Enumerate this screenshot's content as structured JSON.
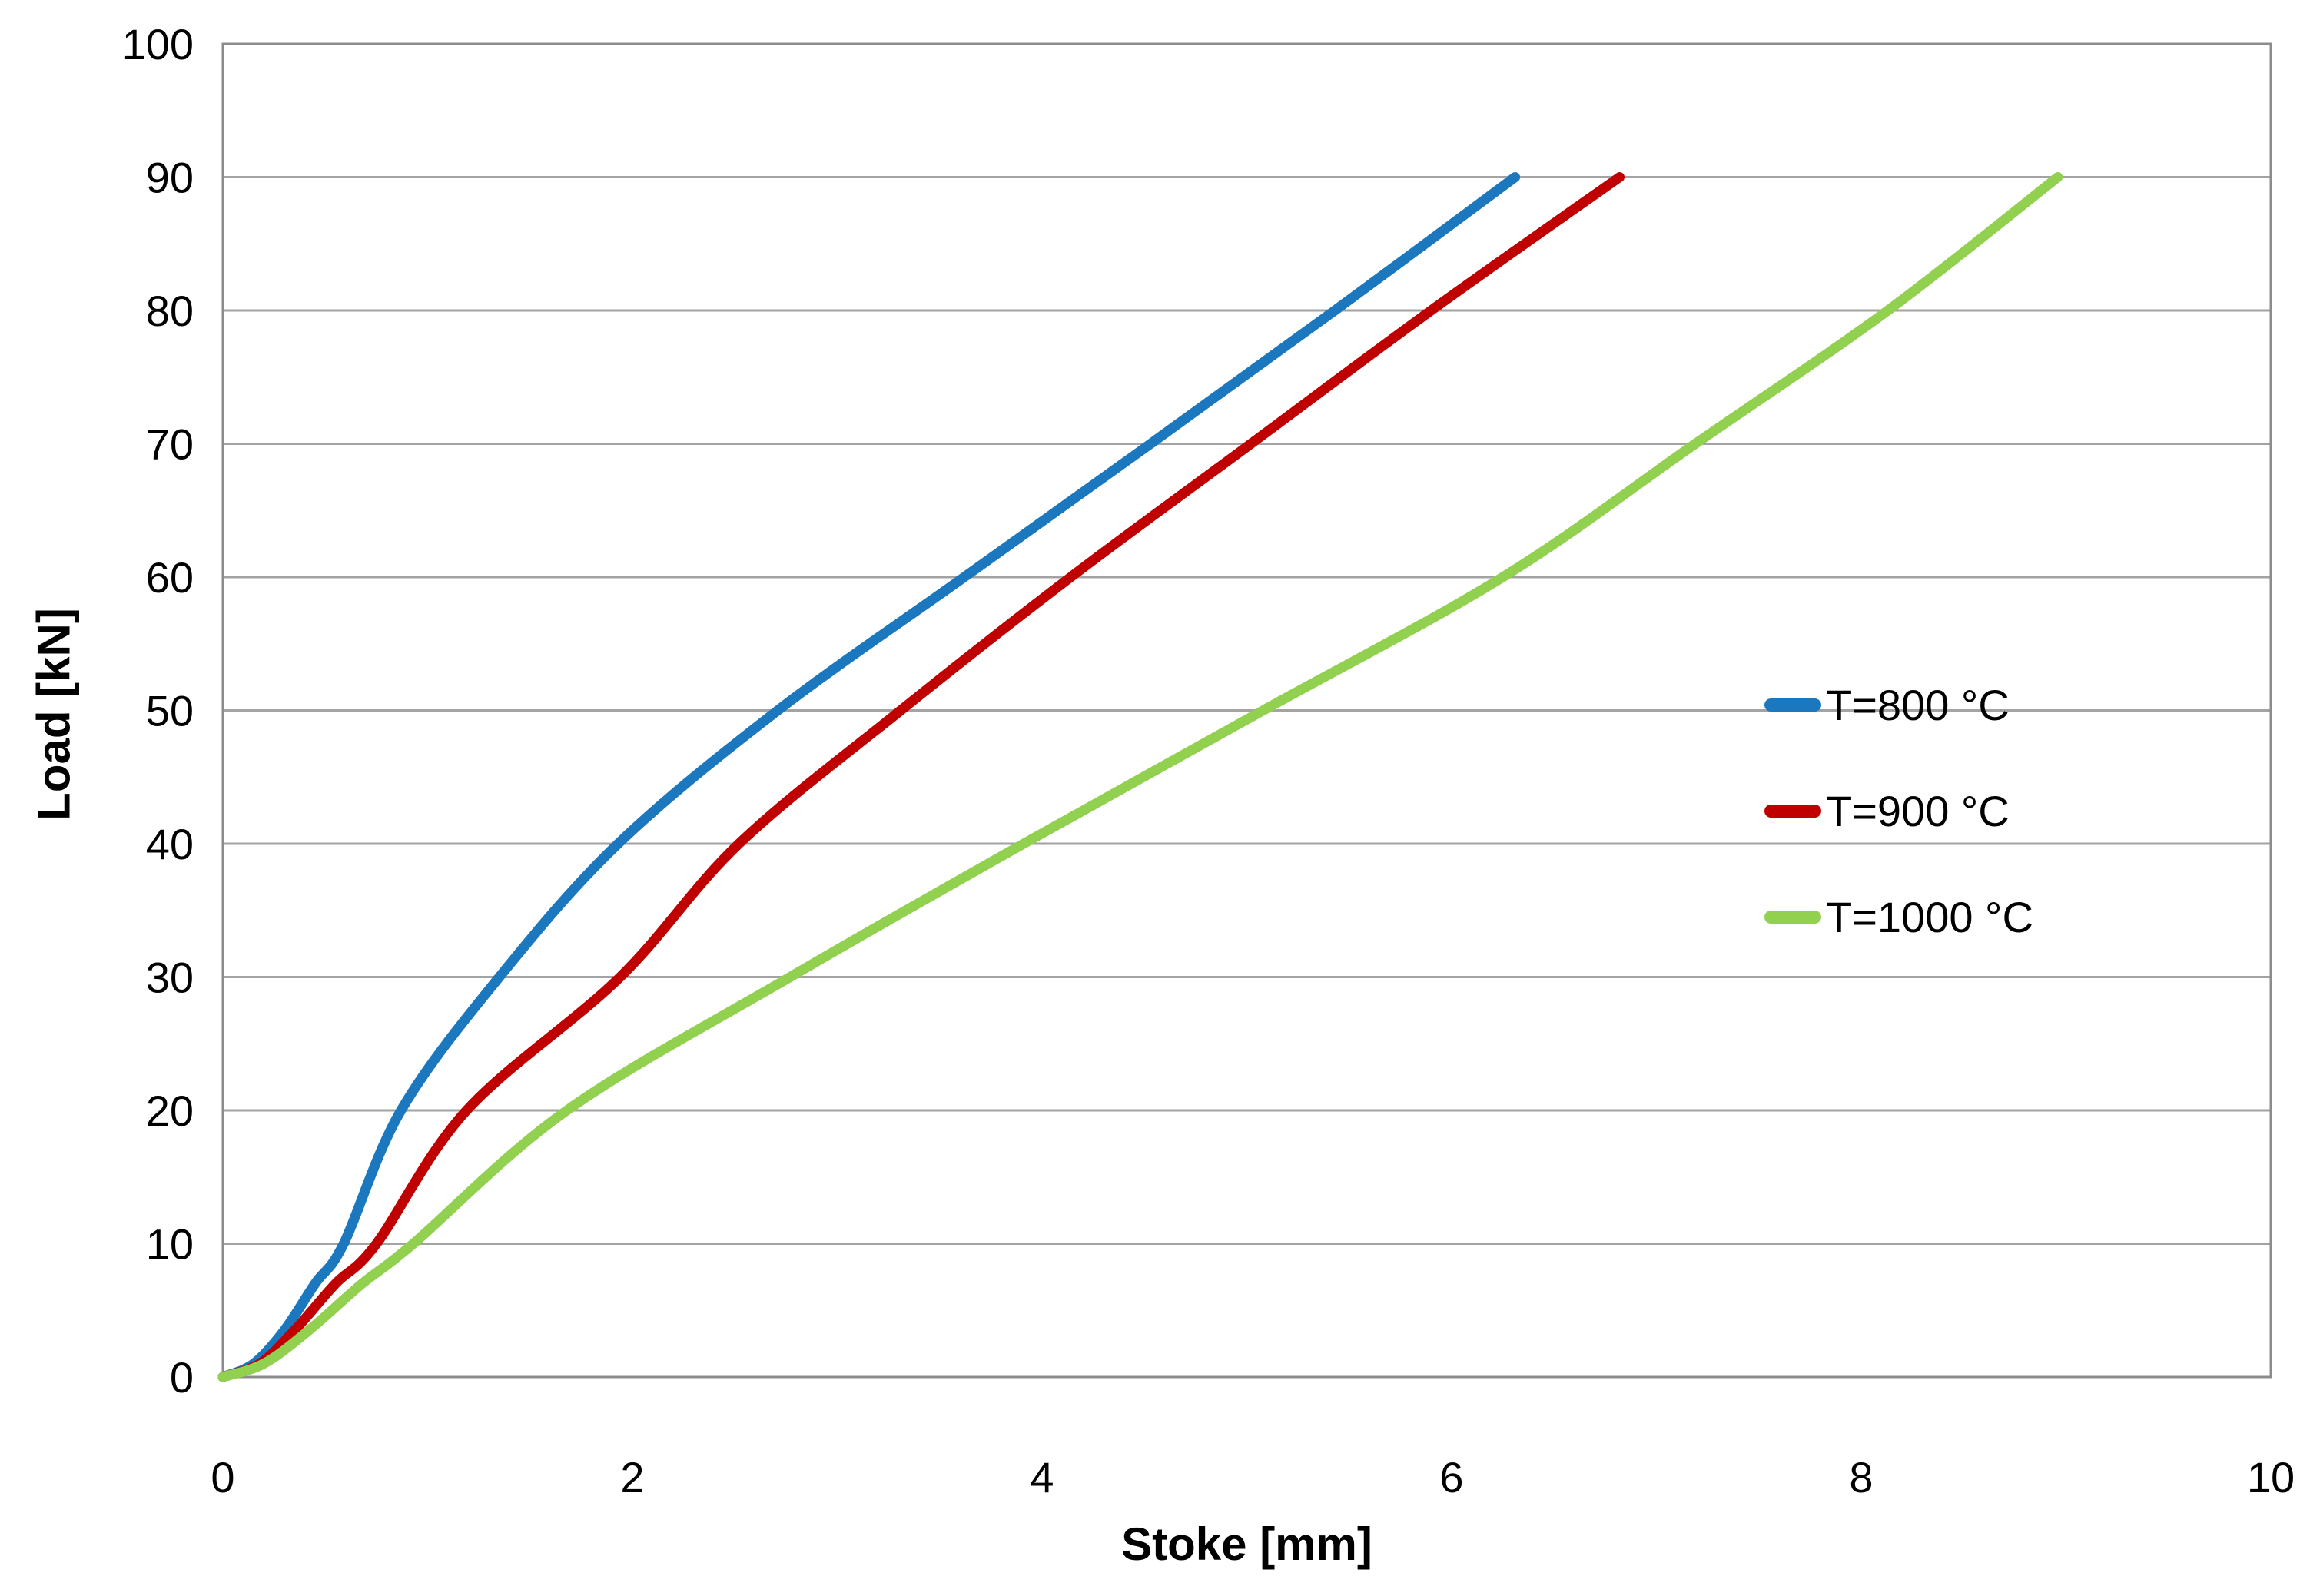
{
  "chart_data": {
    "type": "line",
    "title": "",
    "xlabel": "Stoke [mm]",
    "ylabel": "Load [kN]",
    "xlim": [
      0,
      10
    ],
    "ylim": [
      0,
      100
    ],
    "x_ticks": [
      0,
      2,
      4,
      6,
      8,
      10
    ],
    "y_ticks": [
      0,
      10,
      20,
      30,
      40,
      50,
      60,
      70,
      80,
      90,
      100
    ],
    "grid": "horizontal-only",
    "legend_position": "right-middle",
    "plot_border": true,
    "colors": {
      "gridline": "#A3A3A3",
      "plot_border": "#8C8C8C",
      "text": "#000000",
      "background": "#FFFFFF"
    },
    "series": [
      {
        "name": "T=800 °C",
        "color": "#1B78BE",
        "points": [
          [
            0,
            0
          ],
          [
            0.15,
            1
          ],
          [
            0.3,
            3.5
          ],
          [
            0.45,
            7
          ],
          [
            0.59,
            10
          ],
          [
            0.87,
            20
          ],
          [
            1.35,
            30
          ],
          [
            1.93,
            40
          ],
          [
            2.71,
            50
          ],
          [
            3.62,
            60
          ],
          [
            4.53,
            70
          ],
          [
            5.43,
            80
          ],
          [
            6.31,
            90
          ]
        ]
      },
      {
        "name": "T=900 °C",
        "color": "#C00000",
        "points": [
          [
            0,
            0
          ],
          [
            0.18,
            1
          ],
          [
            0.35,
            3.5
          ],
          [
            0.55,
            7
          ],
          [
            0.75,
            10
          ],
          [
            1.19,
            20
          ],
          [
            1.94,
            30
          ],
          [
            2.52,
            40
          ],
          [
            3.31,
            50
          ],
          [
            4.14,
            60
          ],
          [
            5.02,
            70
          ],
          [
            5.9,
            80
          ],
          [
            6.82,
            90
          ]
        ]
      },
      {
        "name": "T=1000 °C",
        "color": "#92D050",
        "points": [
          [
            0,
            0
          ],
          [
            0.2,
            1
          ],
          [
            0.42,
            3.5
          ],
          [
            0.68,
            7
          ],
          [
            0.93,
            10
          ],
          [
            1.68,
            20
          ],
          [
            2.77,
            30
          ],
          [
            3.91,
            40
          ],
          [
            5.08,
            50
          ],
          [
            6.25,
            60
          ],
          [
            7.19,
            70
          ],
          [
            8.13,
            80
          ],
          [
            8.96,
            90
          ]
        ]
      }
    ]
  }
}
